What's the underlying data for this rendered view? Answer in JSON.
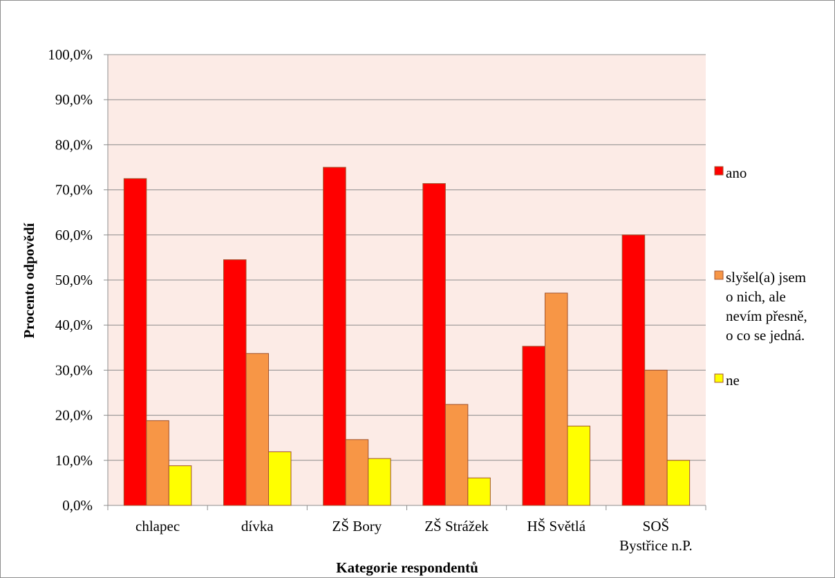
{
  "chart_data": {
    "type": "bar",
    "title": "",
    "xlabel": "Kategorie respondentů",
    "ylabel": "Procento odpovědí",
    "ylim": [
      0,
      100
    ],
    "ytick_values": [
      0,
      10,
      20,
      30,
      40,
      50,
      60,
      70,
      80,
      90,
      100
    ],
    "ytick_labels": [
      "0,0%",
      "10,0%",
      "20,0%",
      "30,0%",
      "40,0%",
      "50,0%",
      "60,0%",
      "70,0%",
      "80,0%",
      "90,0%",
      "100,0%"
    ],
    "grid": true,
    "legend_position": "right",
    "plot_background": "#fcebe6",
    "categories": [
      [
        "chlapec"
      ],
      [
        "dívka"
      ],
      [
        "ZŠ Bory"
      ],
      [
        "ZŠ Strážek"
      ],
      [
        "HŠ Světlá"
      ],
      [
        "SOŠ",
        "Bystřice n.P."
      ]
    ],
    "series": [
      {
        "name": "ano",
        "name_lines": [
          "ano"
        ],
        "color": "#ff0000",
        "values": [
          72.5,
          54.5,
          75.0,
          71.4,
          35.3,
          60.0
        ]
      },
      {
        "name": "slyšel(a) jsem o nich, ale nevím přesně, o co se jedná.",
        "name_lines": [
          "slyšel(a) jsem",
          "o nich, ale",
          "nevím přesně,",
          "o co se jedná."
        ],
        "color": "#f79646",
        "values": [
          18.8,
          33.7,
          14.6,
          22.4,
          47.1,
          30.0
        ]
      },
      {
        "name": "ne",
        "name_lines": [
          "ne"
        ],
        "color": "#ffff00",
        "values": [
          8.8,
          11.9,
          10.4,
          6.1,
          17.6,
          10.0
        ]
      }
    ]
  }
}
